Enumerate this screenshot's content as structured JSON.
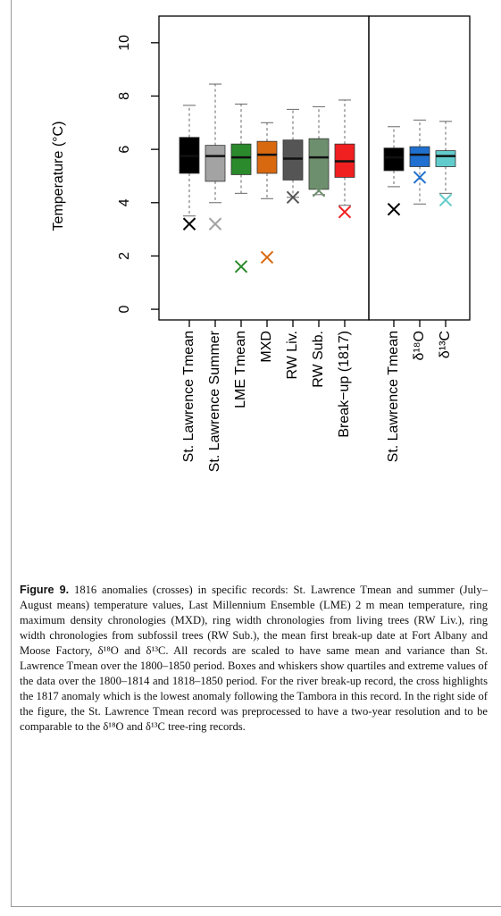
{
  "chart_data": [
    {
      "type": "box",
      "y_label": "Temperature (°C)",
      "categories": [
        "St. Lawrence Tmean",
        "St. Lawrence Summer",
        "LME Tmean",
        "MXD",
        "RW Liv.",
        "RW Sub.",
        "Break−up (1817)"
      ],
      "colors": [
        "#000000",
        "#a3a3a3",
        "#2b8a2b",
        "#d9690f",
        "#555555",
        "#6e8f6e",
        "#f02020"
      ],
      "whisker_high": [
        7.65,
        8.45,
        7.7,
        7.0,
        7.5,
        7.6,
        7.85
      ],
      "q3": [
        6.45,
        6.15,
        6.2,
        6.3,
        6.35,
        6.4,
        6.2
      ],
      "median": [
        5.75,
        5.75,
        5.7,
        5.8,
        5.65,
        5.7,
        5.55
      ],
      "q1": [
        5.1,
        4.8,
        5.05,
        5.1,
        4.85,
        4.5,
        4.95
      ],
      "whisker_low": [
        3.5,
        4.0,
        4.35,
        4.15,
        4.2,
        4.3,
        3.9
      ],
      "crosses": [
        3.2,
        3.2,
        1.6,
        1.95,
        4.2,
        4.45,
        3.65
      ],
      "ylim": [
        -0.4,
        11.0
      ],
      "yticks": [
        0,
        2,
        4,
        6,
        8,
        10
      ]
    },
    {
      "type": "box",
      "categories": [
        "St. Lawrence Tmean",
        "δ¹⁸O",
        "δ¹³C"
      ],
      "colors": [
        "#000000",
        "#1f70d0",
        "#62cccc"
      ],
      "whisker_high": [
        6.85,
        7.1,
        7.05
      ],
      "q3": [
        6.05,
        6.1,
        5.95
      ],
      "median": [
        5.7,
        5.8,
        5.75
      ],
      "q1": [
        5.2,
        5.35,
        5.35
      ],
      "whisker_low": [
        4.6,
        3.95,
        4.35
      ],
      "crosses": [
        3.75,
        4.95,
        4.1
      ],
      "ylim": [
        -0.4,
        11.0
      ]
    }
  ],
  "caption": {
    "label": "Figure 9.",
    "text": "1816 anomalies (crosses) in specific records: St. Lawrence Tmean and summer (July–August means) temperature values, Last Millennium Ensemble (LME) 2 m mean temperature, ring maximum density chronologies (MXD), ring width chronologies from living trees (RW Liv.), ring width chronologies from subfossil trees (RW Sub.), the mean first break-up date at Fort Albany and Moose Factory, δ¹⁸O and δ¹³C. All records are scaled to have same mean and variance than St. Lawrence Tmean over the 1800–1850 period. Boxes and whiskers show quartiles and extreme values of the data over the 1800–1814 and 1818–1850 period. For the river break-up record, the cross highlights the 1817 anomaly which is the lowest anomaly following the Tambora in this record. In the right side of the figure, the St. Lawrence Tmean record was preprocessed to have a two-year resolution and to be comparable to the δ¹⁸O and δ¹³C tree-ring records."
  }
}
